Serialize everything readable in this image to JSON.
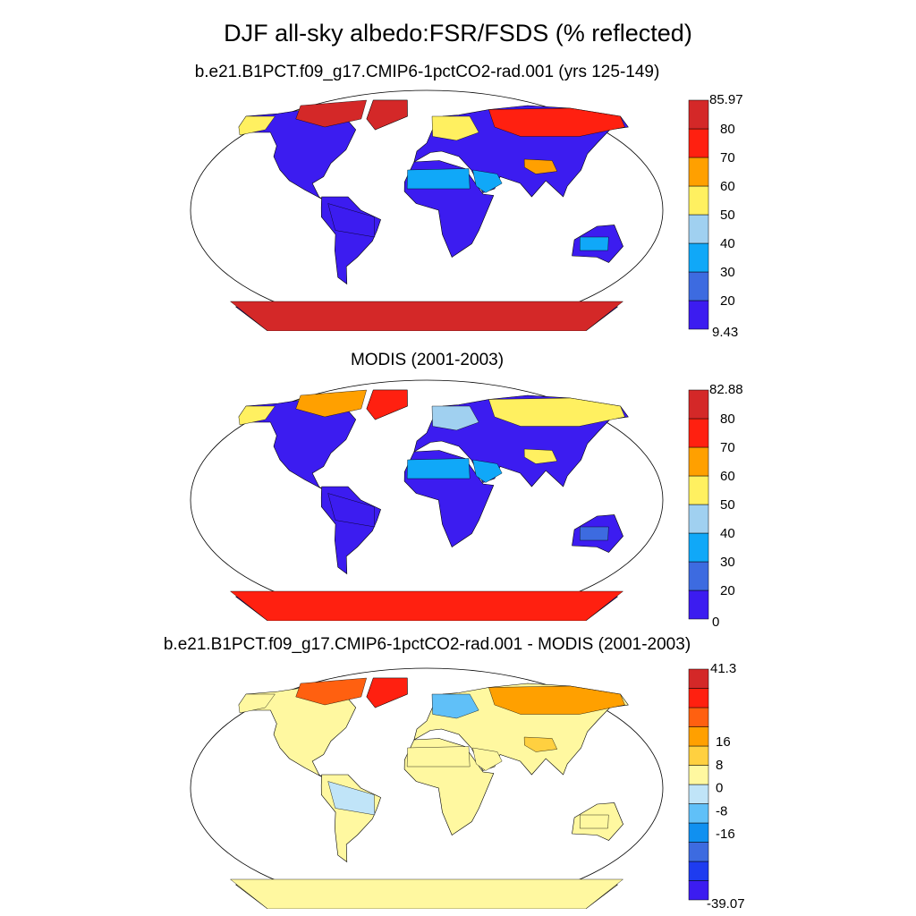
{
  "figure": {
    "title": "DJF all-sky albedo:FSR/FSDS (% reflected)"
  },
  "colors": {
    "ocean": "#ffffff",
    "outline": "#000000"
  },
  "chart_data": [
    {
      "type": "heatmap",
      "projection": "Robinson",
      "title": "b.e21.B1PCT.f09_g17.CMIP6-1pctCO2-rad.001 (yrs 125-149)",
      "colorbar": {
        "max_label": "85.97",
        "min_label": "9.43",
        "levels": [
          20,
          30,
          40,
          50,
          60,
          70,
          80
        ],
        "colors": [
          "#3c1cf0",
          "#3d6be0",
          "#10a8f8",
          "#a0d0f0",
          "#fff060",
          "#ffa000",
          "#ff2010",
          "#d42828"
        ]
      },
      "regions": [
        {
          "name": "Greenland",
          "value": 82
        },
        {
          "name": "Arctic Canada",
          "value": 80
        },
        {
          "name": "Alaska",
          "value": 55
        },
        {
          "name": "Siberia",
          "value": 75
        },
        {
          "name": "Northern Europe",
          "value": 50
        },
        {
          "name": "Tibetan Plateau",
          "value": 65
        },
        {
          "name": "Sahara",
          "value": 38
        },
        {
          "name": "Arabia",
          "value": 30
        },
        {
          "name": "Australia interior",
          "value": 30
        },
        {
          "name": "Tropics",
          "value": 12
        },
        {
          "name": "Antarctica",
          "value": 84
        }
      ]
    },
    {
      "type": "heatmap",
      "projection": "Robinson",
      "title": "MODIS (2001-2003)",
      "colorbar": {
        "max_label": "82.88",
        "min_label": "0",
        "levels": [
          20,
          30,
          40,
          50,
          60,
          70,
          80
        ],
        "colors": [
          "#3c1cf0",
          "#3d6be0",
          "#10a8f8",
          "#a0d0f0",
          "#fff060",
          "#ffa000",
          "#ff2010",
          "#d42828"
        ]
      },
      "regions": [
        {
          "name": "Greenland",
          "value": 75
        },
        {
          "name": "Arctic Canada",
          "value": 60
        },
        {
          "name": "Alaska",
          "value": 55
        },
        {
          "name": "Siberia",
          "value": 58
        },
        {
          "name": "Northern Europe",
          "value": 45
        },
        {
          "name": "Tibetan Plateau",
          "value": 55
        },
        {
          "name": "Sahara",
          "value": 36
        },
        {
          "name": "Arabia",
          "value": 30
        },
        {
          "name": "Australia interior",
          "value": 25
        },
        {
          "name": "Tropics",
          "value": 12
        },
        {
          "name": "Antarctica",
          "value": 78
        }
      ]
    },
    {
      "type": "heatmap",
      "projection": "Robinson",
      "title": "b.e21.B1PCT.f09_g17.CMIP6-1pctCO2-rad.001 - MODIS (2001-2003)",
      "colorbar": {
        "max_label": "41.3",
        "min_label": "-39.07",
        "tick_labels": [
          "-16",
          "-8",
          "0",
          "8",
          "16"
        ],
        "colors": [
          "#3c1cf0",
          "#1e3cf0",
          "#3d6be0",
          "#1090f0",
          "#60c0f8",
          "#c0e4f8",
          "#fff8a0",
          "#ffd040",
          "#ffa000",
          "#ff6010",
          "#ff2010",
          "#d42828"
        ]
      },
      "regions": [
        {
          "name": "Greenland",
          "value": 30
        },
        {
          "name": "Arctic Canada",
          "value": 25
        },
        {
          "name": "Alaska",
          "value": 5
        },
        {
          "name": "Siberia",
          "value": 20
        },
        {
          "name": "Northern Europe",
          "value": -10
        },
        {
          "name": "Tibetan Plateau",
          "value": 10
        },
        {
          "name": "Sahara",
          "value": 2
        },
        {
          "name": "Arabia",
          "value": 2
        },
        {
          "name": "Australia interior",
          "value": 4
        },
        {
          "name": "Tropics",
          "value": -2
        },
        {
          "name": "Antarctica",
          "value": 4
        }
      ]
    }
  ]
}
